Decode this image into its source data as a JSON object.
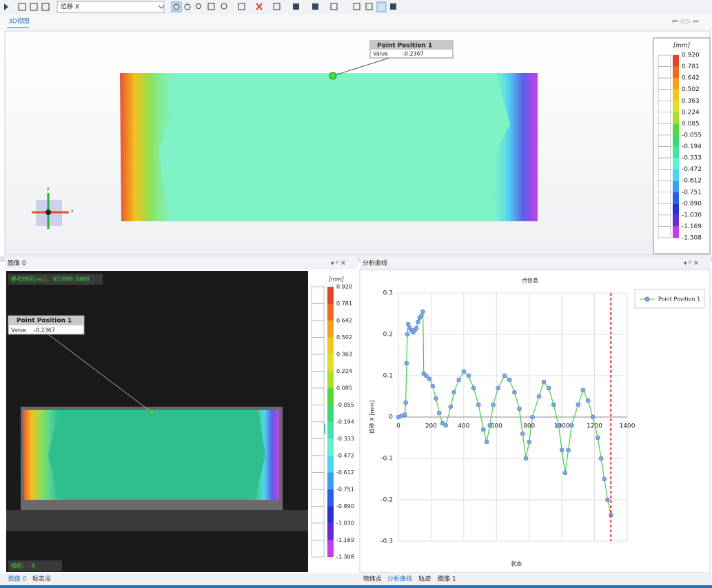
{
  "toolbar": {
    "dropdown": "位移 X"
  },
  "view3d": {
    "tab": "3D视图",
    "triad": {
      "x": "x",
      "y": "y"
    },
    "point_box": {
      "title": "Point Position 1",
      "label": "Value",
      "value": "-0.2367"
    }
  },
  "colorbar": {
    "unit": "[mm]",
    "labels": [
      "0.920",
      "0.781",
      "0.642",
      "0.502",
      "0.363",
      "0.224",
      "0.085",
      "-0.055",
      "-0.194",
      "-0.333",
      "-0.472",
      "-0.612",
      "-0.751",
      "-0.890",
      "-1.030",
      "-1.169",
      "-1.308"
    ],
    "colors": [
      "#e8402a",
      "#f06a1e",
      "#f5a01a",
      "#f2c81f",
      "#dfe024",
      "#a8e02a",
      "#55d63c",
      "#3cd674",
      "#48e2a8",
      "#5ff0cc",
      "#48d6ee",
      "#3a9eee",
      "#2a5ee6",
      "#2a30d6",
      "#6a2ad8",
      "#c23ee6"
    ]
  },
  "image_panel": {
    "title": "图像 0",
    "time": "参考时间[ms]: 652000.0000",
    "camera": "相机: -0"
  },
  "chart_panel": {
    "title": "分析曲线"
  },
  "bottom_tabs_left": [
    "图像 0",
    "标志点"
  ],
  "bottom_tabs_right": [
    "物体点",
    "分析曲线",
    "轨迹",
    "图像 1"
  ],
  "chart_data": {
    "type": "line",
    "title": "点信息",
    "x_label": "状态",
    "y_label": "位移 X [mm]",
    "x": [
      0,
      20,
      40,
      45,
      50,
      55,
      60,
      70,
      80,
      90,
      100,
      110,
      120,
      130,
      140,
      150,
      155,
      170,
      190,
      210,
      230,
      250,
      270,
      290,
      320,
      340,
      370,
      400,
      430,
      460,
      490,
      520,
      540,
      560,
      580,
      610,
      650,
      680,
      710,
      740,
      760,
      780,
      800,
      820,
      860,
      890,
      920,
      950,
      980,
      1000,
      1020,
      1040,
      1060,
      1100,
      1130,
      1160,
      1190,
      1220,
      1240,
      1260,
      1280,
      1300
    ],
    "series": [
      {
        "name": "Point Position 1",
        "line_color": "#44cc44",
        "marker_color": "#7fa8e8",
        "values": [
          0,
          0.003,
          0.006,
          0.035,
          0.13,
          0.2,
          0.225,
          0.215,
          0.21,
          0.205,
          0.21,
          0.215,
          0.23,
          0.24,
          0.245,
          0.255,
          0.105,
          0.1,
          0.092,
          0.075,
          0.045,
          0.01,
          -0.015,
          -0.02,
          0.025,
          0.06,
          0.09,
          0.11,
          0.1,
          0.07,
          0.03,
          -0.03,
          -0.06,
          -0.02,
          0.03,
          0.07,
          0.1,
          0.09,
          0.06,
          0.02,
          -0.04,
          -0.1,
          -0.06,
          0,
          0.05,
          0.085,
          0.07,
          0.03,
          -0.02,
          -0.08,
          -0.135,
          -0.08,
          -0.02,
          0.03,
          0.065,
          0.04,
          0,
          -0.05,
          -0.1,
          -0.15,
          -0.2,
          -0.237
        ]
      }
    ],
    "cursor_x": 1300,
    "cursor_color": "#e03030",
    "xlim": [
      0,
      1400
    ],
    "ylim": [
      -0.3,
      0.3
    ],
    "xticks": [
      0,
      200,
      400,
      600,
      800,
      1000,
      1200,
      1400
    ],
    "yticks": [
      -0.3,
      -0.2,
      -0.1,
      0,
      0.1,
      0.2,
      0.3
    ],
    "grid": true,
    "legend": "right"
  }
}
